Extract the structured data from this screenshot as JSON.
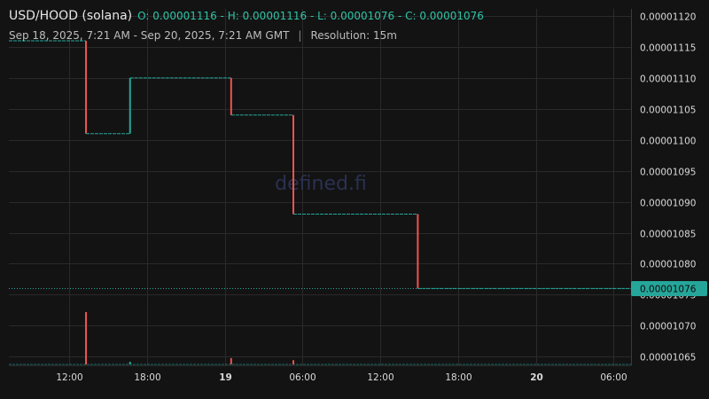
{
  "header": {
    "pair": "USD/HOOD (solana)",
    "ohlc": "O: 0.00001116 - H: 0.00001116 - L: 0.00001076 - C: 0.00001076",
    "range": "Sep 18, 2025, 7:21 AM - Sep 20, 2025, 7:21 AM GMT",
    "separator": "|",
    "resolution": "Resolution: 15m"
  },
  "watermark": "defined.fi",
  "colors": {
    "up": "#26a69a",
    "down": "#ef5350",
    "grid": "#2a2a2a",
    "badge": "#26a69a"
  },
  "chart_data": {
    "type": "line",
    "y_ticks": [
      "0.00001065",
      "0.00001070",
      "0.00001075",
      "0.00001080",
      "0.00001085",
      "0.00001090",
      "0.00001095",
      "0.00001100",
      "0.00001105",
      "0.00001110",
      "0.00001115",
      "0.00001120"
    ],
    "x_ticks": [
      {
        "label": "12:00",
        "h": 12,
        "bold": false
      },
      {
        "label": "18:00",
        "h": 18,
        "bold": false
      },
      {
        "label": "19",
        "h": 24,
        "bold": true
      },
      {
        "label": "06:00",
        "h": 30,
        "bold": false
      },
      {
        "label": "12:00",
        "h": 36,
        "bold": false
      },
      {
        "label": "18:00",
        "h": 42,
        "bold": false
      },
      {
        "label": "20",
        "h": 48,
        "bold": true
      },
      {
        "label": "06:00",
        "h": 54,
        "bold": false
      }
    ],
    "steps": [
      {
        "t0": 7.35,
        "t1": 13.3,
        "price": 1.116e-05,
        "dir": "up"
      },
      {
        "t0": 13.3,
        "t1": 16.7,
        "price": 1.101e-05,
        "dir": "down"
      },
      {
        "t0": 16.7,
        "t1": 24.5,
        "price": 1.11e-05,
        "dir": "up"
      },
      {
        "t0": 24.5,
        "t1": 29.3,
        "price": 1.104e-05,
        "dir": "down"
      },
      {
        "t0": 29.3,
        "t1": 38.9,
        "price": 1.088e-05,
        "dir": "down"
      },
      {
        "t0": 38.9,
        "t1": 55.35,
        "price": 1.076e-05,
        "dir": "down"
      }
    ],
    "volume": [
      {
        "t": 13.3,
        "v": 1.0,
        "dir": "down"
      },
      {
        "t": 16.7,
        "v": 0.05,
        "dir": "up"
      },
      {
        "t": 24.5,
        "v": 0.12,
        "dir": "down"
      },
      {
        "t": 29.3,
        "v": 0.08,
        "dir": "down"
      }
    ],
    "last_price": "0.00001076",
    "last_price_value": 1.076e-05,
    "y_min": 1.0636e-05,
    "y_max": 1.12115e-05
  }
}
